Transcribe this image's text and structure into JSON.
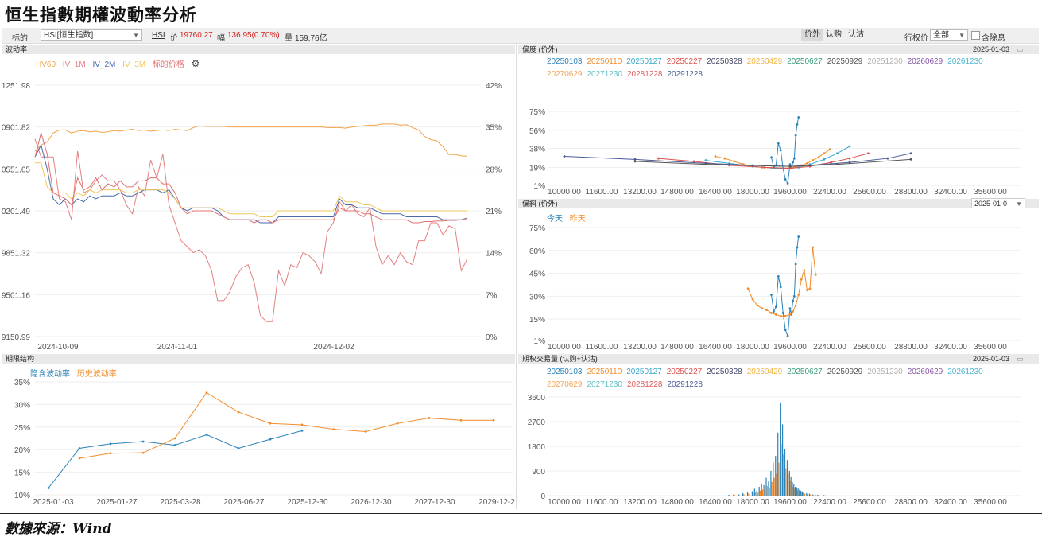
{
  "page": {
    "title": "恒生指數期權波動率分析",
    "source": "數據來源：Wind"
  },
  "toolbar": {
    "target_label": "标的",
    "target_value": "HSI[恒生指数]",
    "code": "HSI",
    "price_label": "价",
    "price_value": "19760.27",
    "change_label": "幅",
    "change_value": "136.95(0.70%)",
    "volume_label": "量",
    "volume_value": "159.76亿",
    "modes": [
      "价外",
      "认购",
      "认沽"
    ],
    "active_mode": 0,
    "strike_label": "行权价",
    "strike_value": "全部",
    "exdiv_label": "含除息",
    "colors": {
      "up": "#d6221f"
    }
  },
  "expiries": [
    "20250103",
    "20250110",
    "20250127",
    "20250227",
    "20250328",
    "20250429",
    "20250627",
    "20250929",
    "20251230",
    "20260629",
    "20261230",
    "20270629",
    "20271230",
    "20281228",
    "20291228"
  ],
  "expiry_colors": [
    "#2c83b9",
    "#f28d2c",
    "#3aa9c9",
    "#d9534f",
    "#444a6a",
    "#f2b441",
    "#3a9c7a",
    "#555555",
    "#b0b0b0",
    "#8a5ba8",
    "#4db6d6",
    "#f2a55c",
    "#5fc1c7",
    "#e05a5a",
    "#4a5a9a"
  ],
  "panels": {
    "vol": {
      "title": "波动率"
    },
    "skew": {
      "title": "偏度 (价外)",
      "date": "2025-01-03"
    },
    "slope": {
      "title": "偏斜 (价外)",
      "date": "2025-01-0"
    },
    "term": {
      "title": "期限结构"
    },
    "volume": {
      "title": "期权交易量 (认购+认沽)",
      "date": "2025-01-03"
    }
  },
  "chart_data": [
    {
      "id": "vol",
      "type": "line",
      "title": "",
      "xlabel": "",
      "ylabel": "",
      "x_ticks": [
        "2024-10-09",
        "2024-11-01",
        "2024-12-02"
      ],
      "y_left_ticks": [
        "1251.98",
        "0901.82",
        "0551.65",
        "0201.49",
        "9851.32",
        "9501.16",
        "9150.99"
      ],
      "y_right_ticks": [
        "42%",
        "35%",
        "28%",
        "21%",
        "14%",
        "7%",
        "0%"
      ],
      "y_right_lim": [
        0,
        42
      ],
      "y_left_lim": [
        19150.99,
        21251.98
      ],
      "legend_position": "top-left",
      "series": [
        {
          "name": "HV60",
          "axis": "right",
          "color": "#f2a34a",
          "values": [
            31,
            32,
            32.5,
            34,
            34.5,
            34.5,
            34,
            34.3,
            34.4,
            34.2,
            34.3,
            34.1,
            34.2,
            34.4,
            34.3,
            34.5,
            34.6,
            34.4,
            34.5,
            34.3,
            34.4,
            34.5,
            34.4,
            34.6,
            34.5,
            34.4,
            34.9,
            35.2,
            35.1,
            35.1,
            35.1,
            35.1,
            35,
            35,
            35,
            35,
            35,
            35,
            35,
            35,
            35,
            35,
            35,
            35,
            35,
            35,
            35,
            35,
            34.9,
            34.9,
            34.9,
            34.8,
            35,
            35.1,
            35.2,
            35.3,
            35.3,
            35.5,
            35.5,
            35.5,
            35.3,
            35.4,
            34.9,
            34.5,
            33.4,
            32.9,
            32.7,
            31.7,
            30.4,
            30.4,
            30.2,
            30.1
          ]
        },
        {
          "name": "IV_1M",
          "axis": "right",
          "color": "#e58080",
          "values": [
            33,
            30,
            30,
            30,
            23,
            22.5,
            19.5,
            31,
            24,
            24.5,
            26,
            27,
            26,
            26,
            24.5,
            22,
            20.5,
            25,
            23.5,
            29.5,
            26.5,
            30.5,
            22,
            19,
            16,
            15,
            14,
            14.5,
            13.5,
            11,
            6,
            6,
            7.5,
            10,
            11.5,
            12,
            9,
            3.5,
            2.5,
            2.5,
            11,
            8.5,
            12,
            11.5,
            14,
            13.5,
            12.5,
            10.5,
            17.5,
            19,
            22.5,
            21,
            22,
            20.5,
            20,
            21.5,
            15,
            12,
            13.5,
            12,
            14,
            12.5,
            12,
            16,
            16,
            19,
            19,
            17,
            18.5,
            18,
            11,
            13
          ]
        },
        {
          "name": "IV_2M",
          "axis": "right",
          "color": "#4a6aa8",
          "values": [
            30,
            32,
            28,
            23,
            22,
            23,
            22,
            23,
            22.5,
            23.5,
            23,
            23.5,
            23.5,
            23.5,
            24,
            23.5,
            23.5,
            24,
            24.5,
            24.5,
            24.5,
            24,
            24.5,
            23,
            21.5,
            21,
            21.5,
            21.5,
            21.5,
            21.5,
            21,
            20,
            19.5,
            19.5,
            19.5,
            19.5,
            19.5,
            19,
            19,
            19,
            20,
            20,
            20,
            20,
            20,
            20,
            20,
            20,
            20,
            20,
            23,
            22,
            22,
            21.5,
            21.5,
            21.5,
            21,
            20.5,
            20.5,
            20.5,
            20.5,
            20,
            20,
            20,
            20,
            20,
            20,
            19.5,
            19.5,
            19.5,
            19.5,
            19.8
          ]
        },
        {
          "name": "IV_3M",
          "axis": "right",
          "color": "#f0c85a",
          "values": [
            29,
            29,
            25,
            24,
            24,
            24,
            23,
            24,
            23.5,
            24.5,
            24,
            24.5,
            24.5,
            24.5,
            24.5,
            24,
            24,
            24.5,
            24.5,
            24.5,
            24.5,
            24.5,
            24,
            23,
            21.5,
            21.5,
            21.5,
            21.5,
            21.5,
            21.5,
            21.5,
            21,
            20.5,
            20.5,
            20.5,
            20.5,
            20.5,
            20,
            20,
            20,
            21,
            21,
            21,
            21,
            21,
            21,
            21,
            21,
            21,
            21,
            23.5,
            22.5,
            22.5,
            22.5,
            22,
            22,
            21.5,
            21,
            21,
            21,
            21,
            21,
            21,
            21,
            21,
            21,
            21,
            21,
            21,
            21,
            21,
            21
          ]
        },
        {
          "name": "标的价格",
          "axis": "right",
          "color": "#e07070",
          "values": [
            30,
            34,
            30.5,
            24,
            23.5,
            23,
            22,
            26.5,
            24.5,
            25,
            26.5,
            24.5,
            25.5,
            25,
            26,
            25,
            25,
            26,
            26,
            26.5,
            26.5,
            25.5,
            25.5,
            24,
            21.5,
            20.5,
            21,
            21,
            21,
            21,
            20.5,
            20,
            19.5,
            19.5,
            19.5,
            19.5,
            19,
            19.5,
            19.5,
            19,
            19.5,
            19.5,
            19.5,
            19.5,
            19.5,
            19.5,
            19.5,
            19.5,
            19.5,
            19.5,
            21.5,
            21,
            21,
            21,
            20.5,
            20.5,
            20,
            19.5,
            19.5,
            19.5,
            19.5,
            19.5,
            19,
            19,
            19.2,
            19.2,
            19.3,
            19.3,
            19.4,
            19.4,
            19.5,
            19.7
          ]
        }
      ]
    },
    {
      "id": "skew",
      "type": "line",
      "title": "",
      "xlabel": "",
      "ylabel": "",
      "x_ticks": [
        "10000.00",
        "11600.00",
        "13200.00",
        "14800.00",
        "16400.00",
        "18000.00",
        "19600.00",
        "22400.00",
        "25600.00",
        "28800.00",
        "32400.00",
        "35600.00"
      ],
      "y_ticks": [
        "1%",
        "19%",
        "38%",
        "56%",
        "75%"
      ],
      "ylim": [
        1,
        75
      ],
      "series": [
        {
          "name": "20250103",
          "color": "#2c83b9",
          "x": [
            18800,
            18900,
            19000,
            19100,
            19200,
            19300,
            19400,
            19500,
            19600,
            19700,
            19800,
            19900,
            20000,
            20100,
            20200
          ],
          "values": [
            29,
            19,
            21,
            43,
            36,
            18,
            7,
            3,
            22,
            18,
            24,
            28,
            51,
            62,
            69
          ]
        },
        {
          "name": "20250110",
          "color": "#f28d2c",
          "x": [
            16400,
            16800,
            17200,
            17600,
            18000,
            18400,
            18800,
            19200,
            19600,
            20000,
            20400,
            20800,
            21200,
            21600,
            22000,
            22400
          ],
          "values": [
            30,
            28,
            25,
            22,
            20,
            19,
            18.5,
            18,
            18.5,
            19.5,
            21,
            23,
            26,
            29,
            33,
            37
          ]
        },
        {
          "name": "20250127",
          "color": "#3aa9c9",
          "x": [
            16000,
            17000,
            18000,
            19000,
            19600,
            20200,
            21000,
            22000,
            23000,
            24000
          ],
          "values": [
            26,
            23,
            20,
            18,
            18,
            19,
            22,
            27,
            33,
            40
          ]
        },
        {
          "name": "20250227",
          "color": "#d9534f",
          "x": [
            14000,
            15500,
            17000,
            18500,
            19600,
            21000,
            22500,
            24000,
            25500
          ],
          "values": [
            28,
            25,
            21,
            19,
            18,
            20,
            24,
            28,
            33
          ]
        },
        {
          "name": "20291228",
          "color": "#4a5a9a",
          "x": [
            10000,
            13000,
            16000,
            18000,
            19600,
            21000,
            24000,
            27000,
            28800
          ],
          "values": [
            30,
            27,
            23,
            21,
            20,
            21,
            24,
            28,
            33
          ]
        },
        {
          "name": "20250929",
          "color": "#555555",
          "x": [
            13000,
            16000,
            19600,
            23000,
            28800
          ],
          "values": [
            25,
            22,
            20,
            22,
            27
          ]
        }
      ]
    },
    {
      "id": "slope",
      "type": "line",
      "title": "",
      "xlabel": "",
      "ylabel": "",
      "legend": [
        "今天",
        "昨天"
      ],
      "x_ticks": [
        "10000.00",
        "11600.00",
        "13200.00",
        "14800.00",
        "16400.00",
        "18000.00",
        "19600.00",
        "22400.00",
        "25600.00",
        "28800.00",
        "32400.00",
        "35600.00"
      ],
      "y_ticks": [
        "1%",
        "15%",
        "30%",
        "45%",
        "60%",
        "75%"
      ],
      "ylim": [
        1,
        75
      ],
      "series": [
        {
          "name": "今天",
          "color": "#2c83b9",
          "x": [
            18800,
            18900,
            19000,
            19100,
            19200,
            19300,
            19400,
            19500,
            19600,
            19700,
            19800,
            19900,
            20000,
            20100,
            20200
          ],
          "values": [
            31,
            20,
            23,
            43,
            36,
            19,
            8,
            4,
            22,
            18,
            27,
            30,
            51,
            62,
            69
          ]
        },
        {
          "name": "昨天",
          "color": "#f28d2c",
          "x": [
            17800,
            18000,
            18200,
            18400,
            18600,
            18800,
            19000,
            19200,
            19400,
            19600,
            19800,
            20000,
            20200,
            20400,
            20600,
            20800,
            21000,
            21200,
            21400
          ],
          "values": [
            35,
            28,
            24,
            22,
            21,
            19,
            18,
            17,
            17,
            18,
            20,
            24,
            31,
            41,
            47,
            34,
            35,
            62,
            44
          ]
        }
      ]
    },
    {
      "id": "term",
      "type": "line",
      "title": "",
      "xlabel": "",
      "ylabel": "",
      "legend": [
        "隐含波动率",
        "历史波动率"
      ],
      "x_ticks": [
        "2025-01-03",
        "2025-01-27",
        "2025-03-28",
        "2025-06-27",
        "2025-12-30",
        "2026-12-30",
        "2027-12-30",
        "2029-12-2"
      ],
      "y_ticks": [
        "10%",
        "15%",
        "20%",
        "25%",
        "30%",
        "35%"
      ],
      "ylim": [
        10,
        35
      ],
      "series": [
        {
          "name": "隐含波动率",
          "color": "#2c83b9",
          "x": [
            "2025-01-03",
            "2025-01-10",
            "2025-01-27",
            "2025-02-27",
            "2025-03-28",
            "2025-04-29",
            "2025-06-27",
            "2025-09-29",
            "2025-12-30"
          ],
          "values": [
            11.5,
            20.3,
            21.3,
            21.8,
            21,
            23.3,
            20.3,
            22.3,
            24.2
          ]
        },
        {
          "name": "历史波动率",
          "color": "#f28d2c",
          "x": [
            "2025-01-10",
            "2025-01-27",
            "2025-02-27",
            "2025-03-28",
            "2025-04-29",
            "2025-06-27",
            "2025-09-29",
            "2025-12-30",
            "2026-06-29",
            "2026-12-30",
            "2027-06-29",
            "2027-12-30",
            "2028-12-28",
            "2029-12-28"
          ],
          "values": [
            18.1,
            19.2,
            19.3,
            22.5,
            32.6,
            28.3,
            25.8,
            25.5,
            24.5,
            24,
            25.8,
            27,
            26.5,
            26.5
          ]
        }
      ]
    },
    {
      "id": "volume",
      "type": "bar",
      "title": "",
      "xlabel": "",
      "ylabel": "",
      "x_ticks": [
        "10000.00",
        "11600.00",
        "13200.00",
        "14800.00",
        "16400.00",
        "18000.00",
        "19600.00",
        "22400.00",
        "25600.00",
        "28800.00",
        "32400.00",
        "35600.00"
      ],
      "y_ticks": [
        "0",
        "900",
        "1800",
        "2700",
        "3600"
      ],
      "ylim": [
        0,
        3600
      ],
      "strikes": [
        17000,
        17200,
        17400,
        17600,
        17800,
        18000,
        18100,
        18200,
        18300,
        18400,
        18500,
        18600,
        18700,
        18800,
        18900,
        19000,
        19100,
        19200,
        19300,
        19400,
        19500,
        19600,
        19700,
        19800,
        19900,
        20000,
        20100,
        20200,
        20300,
        20400,
        20500,
        20600,
        20800,
        21000,
        21200,
        21400,
        21600,
        22000
      ],
      "series": [
        {
          "name": "20250103",
          "color": "#2c83b9",
          "values": [
            30,
            40,
            60,
            90,
            120,
            160,
            250,
            200,
            320,
            420,
            380,
            650,
            520,
            900,
            1200,
            1450,
            2300,
            3400,
            2600,
            1700,
            1300,
            900,
            700,
            500,
            420,
            320,
            300,
            260,
            220,
            180,
            150,
            120,
            90,
            70,
            50,
            40,
            30,
            20
          ]
        },
        {
          "name": "20250110",
          "color": "#f28d2c",
          "values": [
            20,
            30,
            40,
            50,
            70,
            90,
            130,
            110,
            180,
            220,
            200,
            350,
            300,
            500,
            650,
            800,
            1200,
            1900,
            1500,
            1000,
            800,
            550,
            420,
            320,
            260,
            200,
            190,
            160,
            140,
            110,
            90,
            70,
            50,
            40,
            30,
            20,
            15,
            10
          ]
        }
      ]
    }
  ]
}
